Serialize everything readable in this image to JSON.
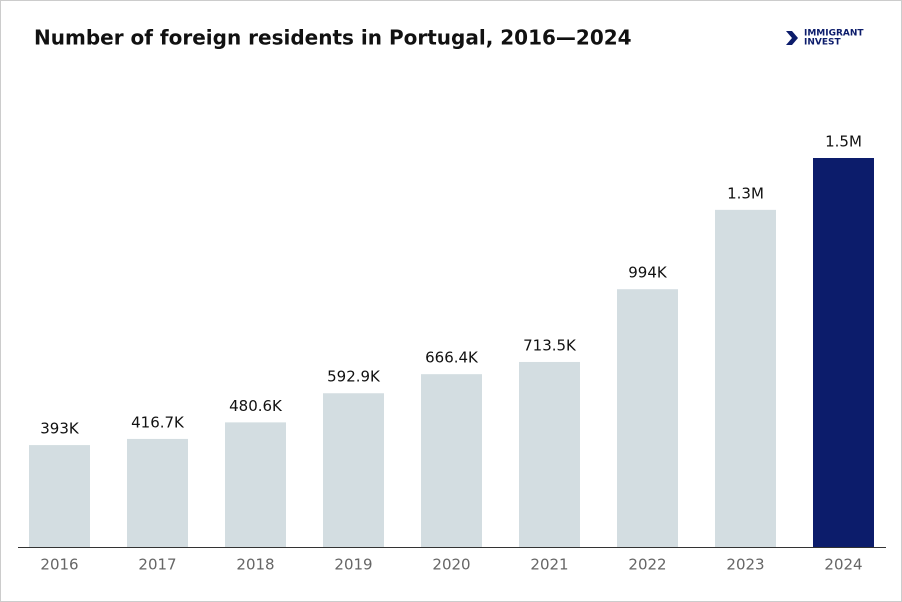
{
  "chart_data": {
    "type": "bar",
    "title": "Number of foreign residents in Portugal, 2016—2024",
    "logo": [
      "IMMIGRANT",
      "INVEST"
    ],
    "categories": [
      "2016",
      "2017",
      "2018",
      "2019",
      "2020",
      "2021",
      "2022",
      "2023",
      "2024"
    ],
    "values": [
      393000,
      416700,
      480600,
      592900,
      666400,
      713500,
      994000,
      1300000,
      1500000
    ],
    "value_labels": [
      "393K",
      "416.7K",
      "480.6K",
      "592.9K",
      "666.4K",
      "713.5K",
      "994K",
      "1.3M",
      "1.5M"
    ],
    "colors": [
      "#d3dde1",
      "#d3dde1",
      "#d3dde1",
      "#d3dde1",
      "#d3dde1",
      "#d3dde1",
      "#d3dde1",
      "#d3dde1",
      "#0c1c6b"
    ]
  }
}
